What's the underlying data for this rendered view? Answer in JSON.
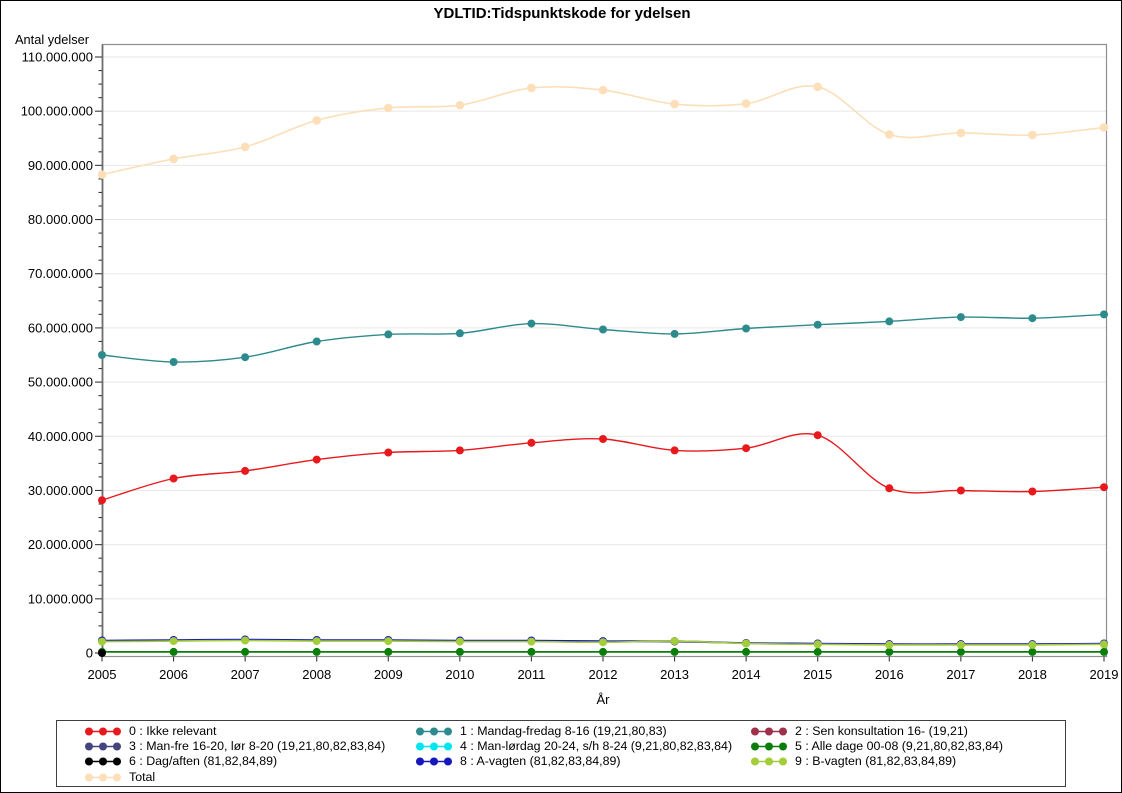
{
  "chart_data": {
    "type": "line",
    "title": "YDLTID:Tidspunktskode for ydelsen",
    "y_axis": {
      "title": "Antal ydelser",
      "min": 0,
      "max": 110000000,
      "major_step": 10000000,
      "minor_step": 2500000,
      "tick_label_format": "thousands-dot"
    },
    "x_axis": {
      "title": "År",
      "categories": [
        2005,
        2006,
        2007,
        2008,
        2009,
        2010,
        2011,
        2012,
        2013,
        2014,
        2015,
        2016,
        2017,
        2018,
        2019
      ]
    },
    "grid": "horizontal-major",
    "legend_position": "bottom",
    "marker": "filled-circle",
    "line_style": "smooth",
    "series": [
      {
        "id": "0",
        "label": "0 : Ikke relevant",
        "color": "#e8191d",
        "values": [
          28200000,
          32200000,
          33600000,
          35700000,
          37000000,
          37400000,
          38800000,
          39500000,
          37400000,
          37800000,
          40200000,
          30400000,
          30000000,
          29800000,
          30600000
        ]
      },
      {
        "id": "1",
        "label": "1 : Mandag-fredag 8-16 (19,21,80,83)",
        "color": "#2e8b8d",
        "values": [
          55000000,
          53700000,
          54600000,
          57500000,
          58800000,
          59000000,
          60800000,
          59700000,
          58900000,
          59900000,
          60600000,
          61200000,
          62000000,
          61800000,
          62500000
        ]
      },
      {
        "id": "2",
        "label": "2 : Sen konsultation 16- (19,21)",
        "color": "#9e3049",
        "values": [
          null,
          null,
          null,
          null,
          null,
          null,
          null,
          null,
          null,
          null,
          null,
          null,
          null,
          null,
          null
        ]
      },
      {
        "id": "3",
        "label": "3 : Man-fre 16-20, lør 8-20 (19,21,80,82,83,84)",
        "color": "#44447e",
        "values": [
          2200000,
          2300000,
          2400000,
          2300000,
          2300000,
          2200000,
          2200000,
          2100000,
          2100000,
          1800000,
          1700000,
          1600000,
          1600000,
          1600000,
          1700000
        ]
      },
      {
        "id": "4",
        "label": "4 : Man-lørdag 20-24, s/h 8-24 (9,21,80,82,83,84)",
        "color": "#00e6f0",
        "values": [
          null,
          null,
          null,
          null,
          null,
          null,
          null,
          null,
          null,
          null,
          null,
          null,
          null,
          null,
          null
        ]
      },
      {
        "id": "5",
        "label": "5 : Alle dage 00-08 (9,21,80,82,83,84)",
        "color": "#0b7d0b",
        "values": [
          200000,
          200000,
          200000,
          200000,
          200000,
          200000,
          200000,
          200000,
          200000,
          200000,
          200000,
          200000,
          200000,
          200000,
          200000
        ]
      },
      {
        "id": "6",
        "label": "6 : Dag/aften (81,82,84,89)",
        "color": "#000000",
        "values": [
          0,
          null,
          null,
          null,
          null,
          null,
          null,
          null,
          null,
          null,
          null,
          null,
          null,
          null,
          null
        ]
      },
      {
        "id": "8",
        "label": "8 : A-vagten (81,82,83,84,89)",
        "color": "#1717bd",
        "values": [
          2300000,
          2400000,
          2500000,
          2400000,
          2400000,
          2300000,
          2300000,
          2200000,
          2200000,
          1850000,
          1750000,
          1650000,
          1650000,
          1650000,
          1750000
        ]
      },
      {
        "id": "9",
        "label": "9 : B-vagten (81,82,83,84,89)",
        "color": "#a4cd3c",
        "values": [
          2100000,
          2200000,
          2300000,
          2200000,
          2200000,
          2100000,
          2100000,
          2000000,
          2200000,
          1750000,
          1600000,
          1500000,
          1500000,
          1500000,
          1600000
        ]
      },
      {
        "id": "total",
        "label": "Total",
        "color": "#fcdfb8",
        "values": [
          88300000,
          91200000,
          93400000,
          98300000,
          100600000,
          101100000,
          104300000,
          103900000,
          101300000,
          101400000,
          104500000,
          95700000,
          96000000,
          95600000,
          97000000
        ]
      }
    ],
    "legend_columns": [
      [
        "0",
        "3",
        "6",
        "total"
      ],
      [
        "1",
        "4",
        "8"
      ],
      [
        "2",
        "5",
        "9"
      ]
    ]
  },
  "colors": {
    "gridline": "#e7e7e7",
    "frame": "#8f8f8f",
    "axis": "#6e6e6e",
    "tick": "#3a3a3a",
    "text": "#000000"
  }
}
